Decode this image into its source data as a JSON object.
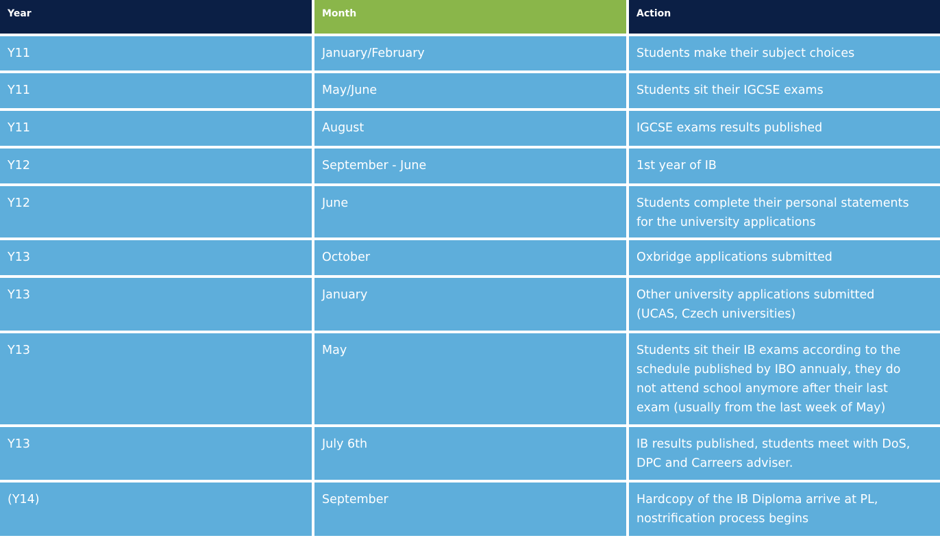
{
  "colors": {
    "header_dark": "#0b1f45",
    "header_green": "#8ab64a",
    "cell_blue": "#5eaedb",
    "text": "#ffffff"
  },
  "table": {
    "headers": [
      "Year",
      "Month",
      "Action"
    ],
    "rows": [
      {
        "year": "Y11",
        "month": "January/February",
        "action": [
          "Students make their subject choices"
        ]
      },
      {
        "year": "Y11",
        "month": "May/June",
        "action": [
          "Students sit their IGCSE exams"
        ]
      },
      {
        "year": "Y11",
        "month": "August",
        "action": [
          "IGCSE exams results published"
        ]
      },
      {
        "year": "Y12",
        "month": "September - June",
        "action": [
          "1st year of IB"
        ]
      },
      {
        "year": "Y12",
        "month": "June",
        "action": [
          "Students complete their personal statements",
          "for the university applications"
        ]
      },
      {
        "year": "Y13",
        "month": "October",
        "action": [
          "Oxbridge applications submitted"
        ]
      },
      {
        "year": "Y13",
        "month": "January",
        "action": [
          "Other university applications submitted",
          "(UCAS, Czech universities)"
        ]
      },
      {
        "year": "Y13",
        "month": "May",
        "action": [
          "Students sit their IB exams according to the",
          "schedule published by IBO annualy, they do",
          "not attend school anymore after their last",
          "exam (usually from the last week of May)"
        ]
      },
      {
        "year": "Y13",
        "month": "July 6th",
        "action": [
          "IB results published, students meet with DoS,",
          "DPC and Carreers adviser."
        ]
      },
      {
        "year": "(Y14)",
        "month": "September",
        "action": [
          "Hardcopy of the IB Diploma arrive at PL,",
          "nostrification process begins"
        ]
      }
    ]
  }
}
